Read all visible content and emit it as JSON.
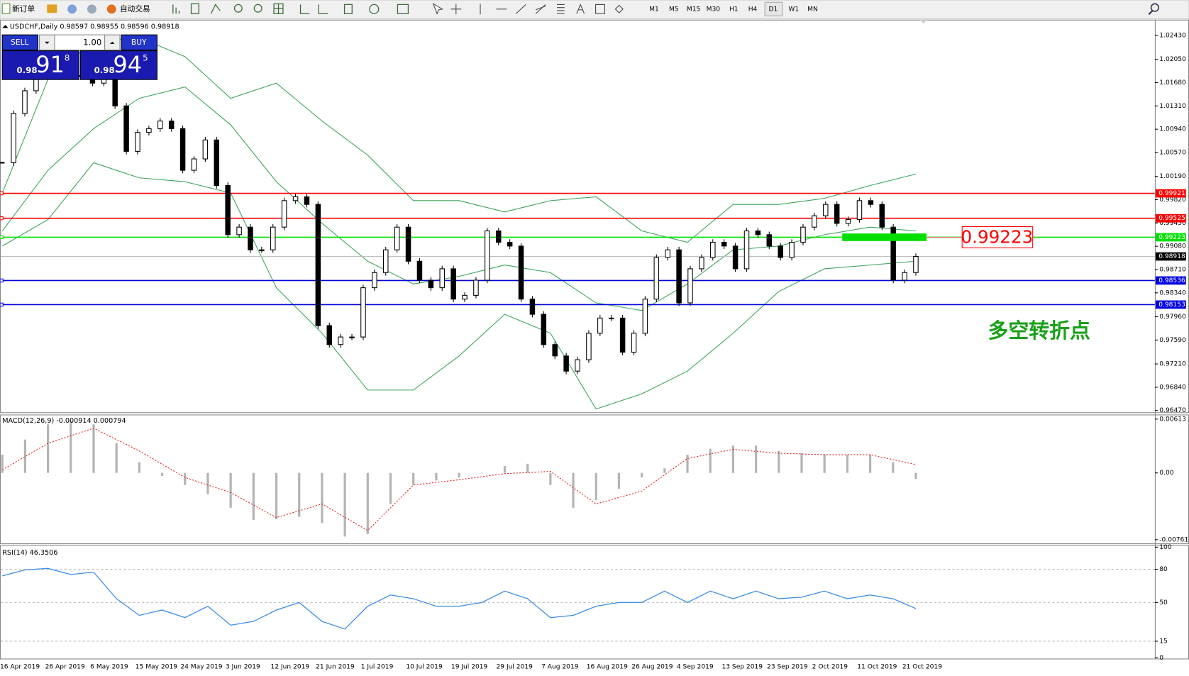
{
  "toolbar": {
    "new_order": "新订单",
    "auto_trading": "自动交易",
    "timeframes": [
      "M1",
      "M5",
      "M15",
      "M30",
      "H1",
      "H4",
      "D1",
      "W1",
      "MN"
    ]
  },
  "trade_panel": {
    "sell": "SELL",
    "buy": "BUY",
    "lots": "1.00",
    "sell_prefix": "0.98",
    "sell_big": "91",
    "sell_sup": "8",
    "buy_prefix": "0.98",
    "buy_big": "94",
    "buy_sup": "5"
  },
  "chart_data": [
    {
      "type": "candlestick",
      "title": "USDCHF,Daily  0.98597 0.98955 0.98596 0.98918",
      "categories": [
        "16 Apr 2019",
        "26 Apr 2019",
        "6 May 2019",
        "15 May 2019",
        "24 May 2019",
        "3 Jun 2019",
        "12 Jun 2019",
        "21 Jun 2019",
        "1 Jul 2019",
        "10 Jul 2019",
        "19 Jul 2019",
        "29 Jul 2019",
        "7 Aug 2019",
        "16 Aug 2019",
        "26 Aug 2019",
        "4 Sep 2019",
        "13 Sep 2019",
        "23 Sep 2019",
        "2 Oct 2019",
        "11 Oct 2019",
        "21 Oct 2019"
      ],
      "closes": [
        1.00407,
        1.0119,
        1.01551,
        1.01792,
        1.01852,
        1.01912,
        1.01792,
        1.01792,
        1.01672,
        1.01792,
        1.0131,
        1.00588,
        1.00889,
        1.00949,
        1.0107,
        1.00949,
        1.00287,
        1.00468,
        1.00769,
        1.00046,
        0.99264,
        0.99384,
        0.99023,
        0.99023,
        0.99384,
        0.99805,
        0.99866,
        0.99745,
        0.97819,
        0.97518,
        0.97638,
        0.97638,
        0.98421,
        0.98662,
        0.99023,
        0.99384,
        0.98842,
        0.98541,
        0.98421,
        0.98722,
        0.9824,
        0.983,
        0.98541,
        0.99324,
        0.99143,
        0.99083,
        0.9824,
        0.97999,
        0.97518,
        0.97337,
        0.97096,
        0.97277,
        0.97698,
        0.97939,
        0.97939,
        0.97397,
        0.97698,
        0.9824,
        0.98902,
        0.99023,
        0.9818,
        0.98722,
        0.98902,
        0.99143,
        0.99083,
        0.98722,
        0.99324,
        0.99264,
        0.99083,
        0.98902,
        0.99143,
        0.99384,
        0.99565,
        0.99745,
        0.99444,
        0.99504,
        0.99805,
        0.99745,
        0.99384,
        0.98541,
        0.98662,
        0.98918
      ],
      "up_color": "#ffffff",
      "down_color": "#000000",
      "bands": {
        "color": "#3aa35a",
        "upper": [
          0.99926,
          1.01732,
          1.02334,
          1.02394,
          1.02093,
          1.01431,
          1.01672,
          1.0107,
          1.00528,
          0.99805,
          0.99805,
          0.99625,
          0.99805,
          0.99866,
          0.99324,
          0.99143,
          0.99745,
          0.99745,
          0.99841,
          1.00046,
          1.00227
        ],
        "middle": [
          0.99324,
          1.00287,
          1.00949,
          1.01431,
          1.01611,
          1.01009,
          1.00106,
          0.99444,
          0.98842,
          0.98481,
          0.98601,
          0.98782,
          0.98662,
          0.9818,
          0.9806,
          0.98481,
          0.99023,
          0.99083,
          0.99264,
          0.99384,
          0.99324
        ],
        "lower": [
          0.99083,
          0.99504,
          1.00407,
          1.00167,
          1.00106,
          0.99926,
          0.98421,
          0.97698,
          0.96795,
          0.96795,
          0.97337,
          0.97999,
          0.97698,
          0.96494,
          0.96735,
          0.97096,
          0.97698,
          0.98361,
          0.98722,
          0.98782,
          0.98842
        ]
      },
      "levels": [
        {
          "price": 0.99921,
          "color": "#ff0000"
        },
        {
          "price": 0.99525,
          "color": "#ff0000"
        },
        {
          "price": 0.99223,
          "color": "#00e000"
        },
        {
          "price": 0.98536,
          "color": "#0000dd"
        },
        {
          "price": 0.98153,
          "color": "#0000dd"
        }
      ],
      "current_price": 0.98918,
      "callout": 0.99223,
      "annotation": "多空转折点",
      "ylim": [
        0.9643,
        1.0268
      ],
      "yticks": [
        {
          "value": 1.0243,
          "label": "1.02430"
        },
        {
          "value": 1.0205,
          "label": "1.02050"
        },
        {
          "value": 1.0168,
          "label": "1.01680"
        },
        {
          "value": 1.0131,
          "label": "1.01310"
        },
        {
          "value": 1.0094,
          "label": "1.00940"
        },
        {
          "value": 1.0057,
          "label": "1.00570"
        },
        {
          "value": 1.0019,
          "label": "1.00190"
        },
        {
          "value": 0.9982,
          "label": "0.99820"
        },
        {
          "value": 0.9945,
          "label": "0.99450"
        },
        {
          "value": 0.9908,
          "label": "0.99080"
        },
        {
          "value": 0.9871,
          "label": "0.98710"
        },
        {
          "value": 0.9834,
          "label": "0.98340"
        },
        {
          "value": 0.9796,
          "label": "0.97960"
        },
        {
          "value": 0.9759,
          "label": "0.97590"
        },
        {
          "value": 0.9721,
          "label": "0.97210"
        },
        {
          "value": 0.9684,
          "label": "0.96840"
        },
        {
          "value": 0.9647,
          "label": "0.96470"
        }
      ]
    },
    {
      "type": "macd",
      "title": "MACD(12,26,9) -0.000914 0.000794",
      "histogram": [
        0.00207,
        0.0038,
        0.00553,
        0.00596,
        0.00553,
        0.00337,
        0.00121,
        -0.00035,
        -0.00138,
        -0.00242,
        -0.00397,
        -0.00535,
        -0.00527,
        -0.00501,
        -0.0057,
        -0.00725,
        -0.00699,
        -0.00354,
        -0.00138,
        -0.00086,
        -0.00052,
        0,
        0.00078,
        0.00104,
        -0.00138,
        -0.00397,
        -0.00311,
        -0.00181,
        -0.00052,
        0.00052,
        0.00207,
        0.00276,
        0.00311,
        0.00311,
        0.0025,
        0.00224,
        0.00207,
        0.00207,
        0.00207,
        0.00121,
        -0.00069
      ],
      "signal": [
        0.00035,
        0.00337,
        0.00509,
        0.0025,
        -0.00052,
        -0.00224,
        -0.00509,
        -0.00354,
        -0.00656,
        -0.00138,
        -0.00078,
        -9e-05,
        0.00017,
        -0.00354,
        -0.00207,
        0.00164,
        0.00268,
        0.00224,
        0.00207,
        0.00207,
        0.00095
      ],
      "histogram_color": "#b4b4b4",
      "signal_color": "#e02020",
      "ylim": [
        -0.00803,
        0.00665
      ],
      "yticks": [
        0.00613,
        {
          "value": 0,
          "label": "0.00"
        },
        -0.007612
      ]
    },
    {
      "type": "line",
      "title": "RSI(14) 46.3506",
      "values": [
        74.0,
        79.5,
        80.8,
        75.3,
        77.4,
        53.4,
        38.4,
        43.2,
        36.3,
        46.6,
        29.5,
        32.9,
        43.2,
        50.0,
        32.9,
        26.0,
        46.6,
        56.8,
        53.4,
        46.6,
        46.6,
        50.0,
        60.3,
        53.4,
        36.3,
        38.4,
        46.6,
        50.0,
        50.0,
        60.3,
        50.0,
        60.3,
        53.4,
        60.3,
        53.4,
        54.8,
        60.3,
        53.4,
        56.8,
        53.4,
        44.5
      ],
      "color": "#3c8ce6",
      "levels": [
        80,
        50,
        15
      ],
      "ylim": [
        0,
        100
      ],
      "yticks": [
        100,
        80,
        50,
        15,
        0
      ]
    }
  ]
}
